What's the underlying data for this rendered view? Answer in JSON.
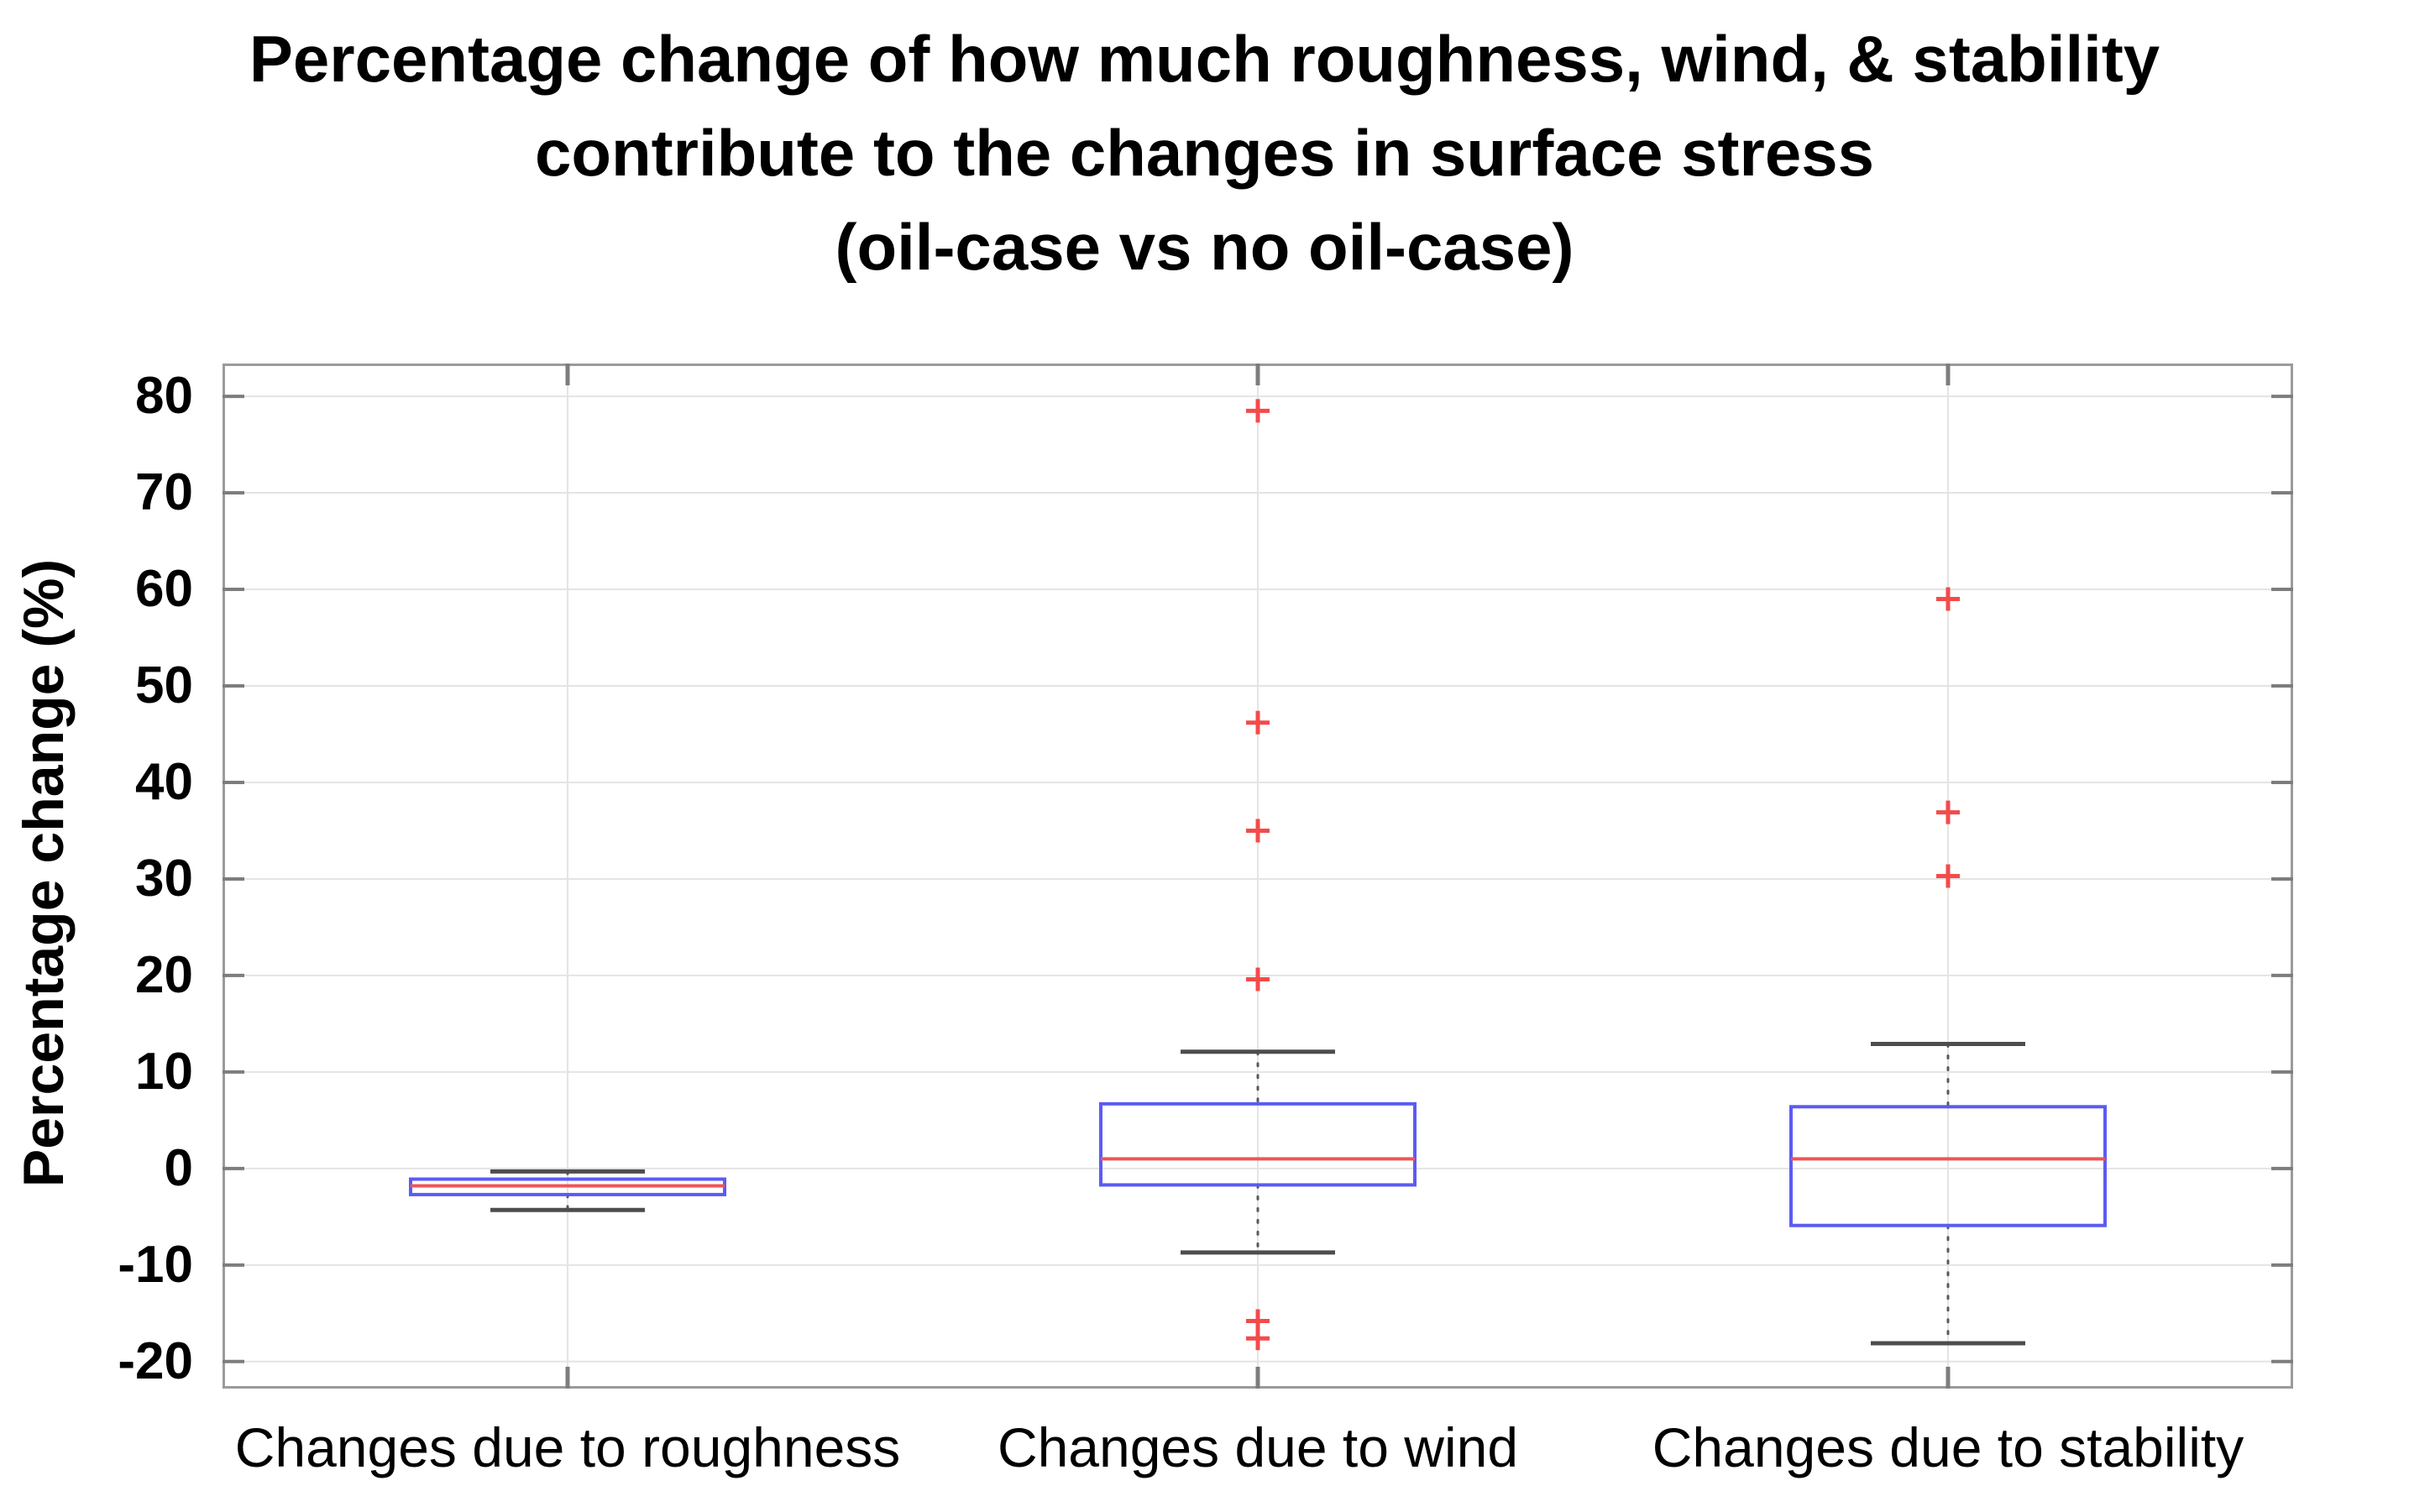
{
  "chart_data": {
    "type": "boxplot",
    "title_lines": [
      "Percentage change of how much roughness, wind, & stability",
      "contribute to the changes in surface stress",
      "(oil-case vs no oil-case)"
    ],
    "ylabel": "Percentage change (%)",
    "xlabel": "",
    "yticks": [
      80,
      70,
      60,
      50,
      40,
      30,
      20,
      10,
      0,
      -10,
      -20
    ],
    "ylim": [
      -22.8,
      83.4
    ],
    "grid": "on",
    "legend": "none",
    "categories": [
      "Changes due to roughness",
      "Changes due to wind",
      "Changes due to stability"
    ],
    "series": [
      {
        "name": "Changes due to roughness",
        "whisker_low": -4.3,
        "q1": -2.7,
        "median": -1.8,
        "q3": -1.1,
        "whisker_high": -0.3,
        "outliers": []
      },
      {
        "name": "Changes due to wind",
        "whisker_low": -8.7,
        "q1": -1.7,
        "median": 1.0,
        "q3": 6.7,
        "whisker_high": 12.1,
        "outliers": [
          78.5,
          46.2,
          35.0,
          19.6,
          -15.8,
          -17.6
        ]
      },
      {
        "name": "Changes due to stability",
        "whisker_low": -18.1,
        "q1": -5.9,
        "median": 1.0,
        "q3": 6.4,
        "whisker_high": 12.9,
        "outliers": [
          59.0,
          36.9,
          30.3
        ]
      }
    ]
  },
  "colors": {
    "box": "#5b5bf5",
    "median": "#f05555",
    "outlier": "#f34b4b",
    "whisker_cap": "#4d4d4d",
    "whisker_line": "#5a5a5a",
    "grid": "#e4e4e4",
    "axis": "#9b9b9b",
    "tick": "#7d7d7d",
    "text": "#000000"
  }
}
